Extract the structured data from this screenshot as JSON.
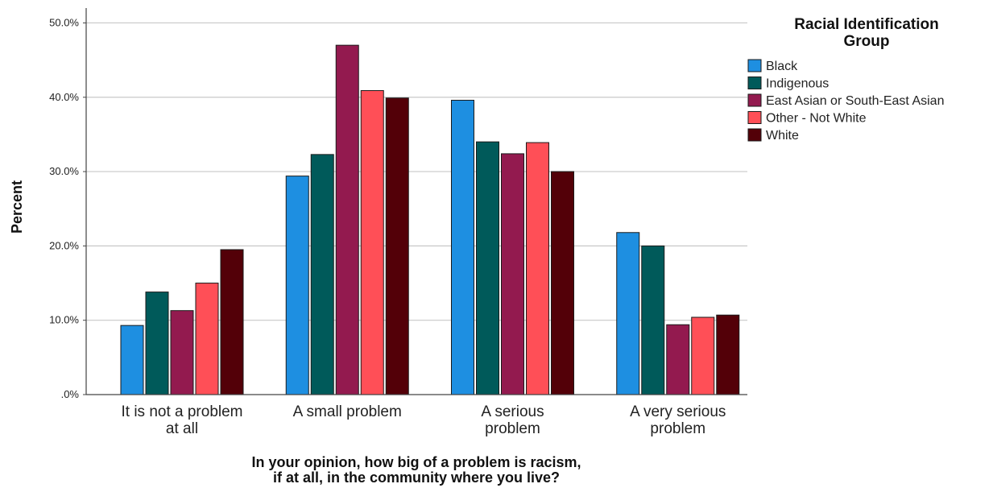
{
  "chart_data": {
    "type": "bar",
    "xlabel_lines": [
      "In your opinion, how big of a problem is racism,",
      "if at all, in the community where you live?"
    ],
    "ylabel": "Percent",
    "ylim": [
      0,
      52
    ],
    "yticks": [
      0,
      10,
      20,
      30,
      40,
      50
    ],
    "ytick_labels": [
      ".0%",
      "10.0%",
      "20.0%",
      "30.0%",
      "40.0%",
      "50.0%"
    ],
    "grid": "horizontal",
    "legend_title_lines": [
      "Racial Identification",
      "Group"
    ],
    "legend_position": "right",
    "categories": [
      [
        "It is not a problem",
        "at all"
      ],
      [
        "A small problem"
      ],
      [
        "A serious",
        "problem"
      ],
      [
        "A very serious",
        "problem"
      ]
    ],
    "series": [
      {
        "name": "Black",
        "color": "#1e8fe1",
        "values": [
          9.3,
          29.4,
          39.6,
          21.8
        ]
      },
      {
        "name": "Indigenous",
        "color": "#005a5a",
        "values": [
          13.8,
          32.3,
          34.0,
          20.0
        ]
      },
      {
        "name": "East Asian or South-East Asian",
        "color": "#931a4f",
        "values": [
          11.3,
          47.0,
          32.4,
          9.4
        ]
      },
      {
        "name": "Other - Not White",
        "color": "#ff4f57",
        "values": [
          15.0,
          40.9,
          33.9,
          10.4
        ]
      },
      {
        "name": "White",
        "color": "#530008",
        "values": [
          19.5,
          39.9,
          30.0,
          10.7
        ]
      }
    ]
  }
}
